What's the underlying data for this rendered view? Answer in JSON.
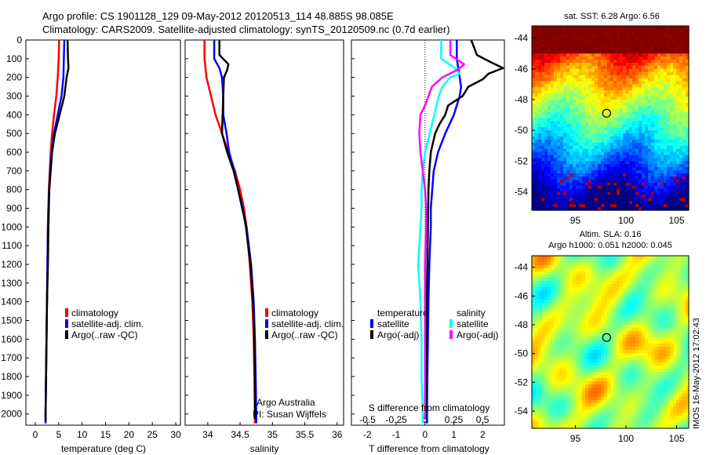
{
  "header": {
    "line1": "Argo profile: CS 1901128_129 09-May-2012 20120513_114 48.885S 98.085E",
    "line2": "Climatology: CARS2009. Satellite-adjusted climatology: synTS_20120509.nc (0.7d earlier)"
  },
  "credit": {
    "line1": "Argo Australia",
    "line2": "PI: Susan Wijffels"
  },
  "stamp": "IMOS 16-May-2012 17:02:43",
  "colors": {
    "climatology": "#ff0000",
    "satellite": "#0000ff",
    "argo": "#000000",
    "satellite_s": "#00ffff",
    "argo_s": "#ff00ff"
  },
  "chart_data": [
    {
      "type": "line",
      "xlabel": "temperature (deg C)",
      "ylabel": "",
      "xlim": [
        -2,
        31
      ],
      "ylim": [
        2060,
        0
      ],
      "xticks": [
        "0",
        "5",
        "10",
        "15",
        "20",
        "25",
        "30"
      ],
      "yticks": [
        "0",
        "100",
        "200",
        "300",
        "400",
        "500",
        "600",
        "700",
        "800",
        "900",
        "1000",
        "1100",
        "1200",
        "1300",
        "1400",
        "1500",
        "1600",
        "1700",
        "1800",
        "1900",
        "2000"
      ],
      "legend": [
        "climatology",
        "satellite-adj. clim.",
        "Argo(..raw -QC)"
      ],
      "series": [
        {
          "name": "climatology",
          "color": "#ff0000",
          "points": [
            [
              5.1,
              0
            ],
            [
              5.0,
              100
            ],
            [
              4.8,
              200
            ],
            [
              4.5,
              300
            ],
            [
              4.0,
              400
            ],
            [
              3.6,
              500
            ],
            [
              3.3,
              600
            ],
            [
              3.1,
              700
            ],
            [
              2.9,
              800
            ],
            [
              2.8,
              900
            ],
            [
              2.7,
              1000
            ],
            [
              2.6,
              1200
            ],
            [
              2.5,
              1400
            ],
            [
              2.4,
              1600
            ],
            [
              2.3,
              1800
            ],
            [
              2.2,
              2000
            ],
            [
              2.2,
              2050
            ]
          ]
        },
        {
          "name": "satellite-adj. clim.",
          "color": "#0000ff",
          "points": [
            [
              6.2,
              0
            ],
            [
              6.1,
              100
            ],
            [
              6.0,
              200
            ],
            [
              5.6,
              300
            ],
            [
              4.8,
              400
            ],
            [
              4.0,
              500
            ],
            [
              3.5,
              600
            ],
            [
              3.2,
              700
            ],
            [
              3.0,
              800
            ],
            [
              2.8,
              900
            ],
            [
              2.7,
              1000
            ],
            [
              2.6,
              1200
            ],
            [
              2.5,
              1400
            ],
            [
              2.4,
              1600
            ],
            [
              2.3,
              1800
            ],
            [
              2.2,
              2000
            ],
            [
              2.2,
              2050
            ]
          ]
        },
        {
          "name": "Argo(..raw -QC)",
          "color": "#000000",
          "points": [
            [
              6.9,
              0
            ],
            [
              7.0,
              100
            ],
            [
              7.1,
              150
            ],
            [
              6.7,
              200
            ],
            [
              6.2,
              300
            ],
            [
              5.2,
              400
            ],
            [
              4.2,
              500
            ],
            [
              3.6,
              600
            ],
            [
              3.3,
              700
            ],
            [
              3.0,
              800
            ],
            [
              2.9,
              900
            ],
            [
              2.8,
              1000
            ],
            [
              2.7,
              1200
            ],
            [
              2.5,
              1400
            ],
            [
              2.4,
              1600
            ],
            [
              2.3,
              1800
            ],
            [
              2.2,
              2000
            ],
            [
              2.2,
              2040
            ]
          ]
        }
      ]
    },
    {
      "type": "line",
      "xlabel": "salinity",
      "ylabel": "",
      "xlim": [
        33.65,
        36.1
      ],
      "ylim": [
        2060,
        0
      ],
      "xticks": [
        "34",
        "34.5",
        "35",
        "35.5",
        "36"
      ],
      "legend": [
        "climatology",
        "satellite-adj. clim.",
        "Argo(..raw -QC)"
      ],
      "series": [
        {
          "name": "climatology",
          "color": "#ff0000",
          "points": [
            [
              33.95,
              0
            ],
            [
              33.95,
              100
            ],
            [
              33.98,
              200
            ],
            [
              34.05,
              300
            ],
            [
              34.12,
              400
            ],
            [
              34.22,
              500
            ],
            [
              34.32,
              600
            ],
            [
              34.42,
              700
            ],
            [
              34.5,
              800
            ],
            [
              34.56,
              900
            ],
            [
              34.6,
              1000
            ],
            [
              34.65,
              1200
            ],
            [
              34.69,
              1400
            ],
            [
              34.71,
              1600
            ],
            [
              34.72,
              1800
            ],
            [
              34.73,
              2000
            ],
            [
              34.73,
              2050
            ]
          ]
        },
        {
          "name": "satellite-adj. clim.",
          "color": "#0000ff",
          "points": [
            [
              34.1,
              0
            ],
            [
              34.1,
              100
            ],
            [
              34.18,
              150
            ],
            [
              34.22,
              200
            ],
            [
              34.24,
              300
            ],
            [
              34.24,
              400
            ],
            [
              34.29,
              500
            ],
            [
              34.33,
              600
            ],
            [
              34.41,
              700
            ],
            [
              34.47,
              800
            ],
            [
              34.53,
              900
            ],
            [
              34.6,
              1000
            ],
            [
              34.67,
              1200
            ],
            [
              34.71,
              1400
            ],
            [
              34.73,
              1600
            ],
            [
              34.74,
              1800
            ],
            [
              34.75,
              2000
            ],
            [
              34.75,
              2050
            ]
          ]
        },
        {
          "name": "Argo(..raw -QC)",
          "color": "#000000",
          "points": [
            [
              34.18,
              0
            ],
            [
              34.18,
              80
            ],
            [
              34.32,
              130
            ],
            [
              34.3,
              160
            ],
            [
              34.25,
              200
            ],
            [
              34.24,
              300
            ],
            [
              34.23,
              400
            ],
            [
              34.22,
              500
            ],
            [
              34.3,
              600
            ],
            [
              34.4,
              700
            ],
            [
              34.47,
              800
            ],
            [
              34.54,
              900
            ],
            [
              34.59,
              1000
            ],
            [
              34.66,
              1200
            ],
            [
              34.7,
              1400
            ],
            [
              34.72,
              1600
            ],
            [
              34.73,
              1800
            ],
            [
              34.73,
              2000
            ],
            [
              34.73,
              2030
            ]
          ]
        }
      ]
    },
    {
      "type": "line",
      "xlabel": "T difference from climatology",
      "title_bottom": "S difference from climatology",
      "xlim_T": [
        -2.55,
        2.75
      ],
      "xticks_T": [
        "-2",
        "-1",
        "0",
        "1",
        "2"
      ],
      "xlim_S": [
        -0.64,
        0.69
      ],
      "xticks_S": [
        "-0.5",
        "-0.25",
        "0",
        "0.25",
        "0.5"
      ],
      "ylim": [
        2060,
        0
      ],
      "legend": [
        "temperature",
        "satellite",
        "Argo(-adj)",
        "salinity",
        "satellite",
        "Argo(-adj)"
      ],
      "series": [
        {
          "name": "satellite",
          "axis": "T",
          "color": "#0000ff",
          "points": [
            [
              1.1,
              0
            ],
            [
              1.1,
              100
            ],
            [
              1.2,
              200
            ],
            [
              1.25,
              250
            ],
            [
              1.2,
              300
            ],
            [
              1.0,
              400
            ],
            [
              0.7,
              500
            ],
            [
              0.45,
              600
            ],
            [
              0.3,
              700
            ],
            [
              0.25,
              800
            ],
            [
              0.2,
              900
            ],
            [
              0.2,
              1000
            ],
            [
              0.15,
              1200
            ],
            [
              0.12,
              1400
            ],
            [
              0.1,
              1600
            ],
            [
              0.08,
              1800
            ],
            [
              0.07,
              2000
            ],
            [
              0.07,
              2050
            ]
          ]
        },
        {
          "name": "Argo(-adj)",
          "axis": "T",
          "color": "#000000",
          "points": [
            [
              1.6,
              0
            ],
            [
              1.8,
              80
            ],
            [
              2.3,
              120
            ],
            [
              2.7,
              150
            ],
            [
              2.2,
              180
            ],
            [
              2.0,
              210
            ],
            [
              1.5,
              250
            ],
            [
              1.3,
              300
            ],
            [
              0.8,
              350
            ],
            [
              0.7,
              400
            ],
            [
              0.5,
              450
            ],
            [
              0.35,
              500
            ],
            [
              0.2,
              600
            ],
            [
              0.15,
              700
            ],
            [
              0.12,
              800
            ],
            [
              0.1,
              1000
            ],
            [
              0.08,
              1200
            ],
            [
              0.06,
              1400
            ],
            [
              0.05,
              1600
            ],
            [
              0.04,
              1800
            ],
            [
              0.03,
              2000
            ],
            [
              0.03,
              2030
            ]
          ]
        },
        {
          "name": "satellite",
          "axis": "S",
          "color": "#00ffff",
          "points": [
            [
              0.14,
              0
            ],
            [
              0.14,
              100
            ],
            [
              0.26,
              150
            ],
            [
              0.3,
              180
            ],
            [
              0.22,
              200
            ],
            [
              0.15,
              250
            ],
            [
              0.12,
              300
            ],
            [
              0.08,
              400
            ],
            [
              0.04,
              500
            ],
            [
              0.0,
              600
            ],
            [
              -0.02,
              700
            ],
            [
              -0.03,
              800
            ],
            [
              -0.03,
              900
            ],
            [
              -0.04,
              1000
            ],
            [
              -0.05,
              1100
            ],
            [
              -0.06,
              1200
            ],
            [
              -0.05,
              1300
            ],
            [
              -0.04,
              1400
            ],
            [
              -0.03,
              1600
            ],
            [
              -0.03,
              1800
            ],
            [
              -0.02,
              2000
            ],
            [
              -0.02,
              2050
            ]
          ]
        },
        {
          "name": "Argo(-adj)",
          "axis": "S",
          "color": "#ff00ff",
          "points": [
            [
              0.22,
              0
            ],
            [
              0.22,
              80
            ],
            [
              0.34,
              130
            ],
            [
              0.28,
              160
            ],
            [
              0.15,
              200
            ],
            [
              0.06,
              250
            ],
            [
              0.03,
              300
            ],
            [
              0.0,
              350
            ],
            [
              -0.04,
              400
            ],
            [
              -0.05,
              500
            ],
            [
              -0.04,
              600
            ],
            [
              -0.02,
              700
            ],
            [
              0.0,
              800
            ],
            [
              0.01,
              900
            ],
            [
              0.01,
              1000
            ],
            [
              0.0,
              1200
            ],
            [
              0.0,
              1400
            ],
            [
              0.0,
              1600
            ],
            [
              0.0,
              1800
            ],
            [
              0.0,
              2000
            ],
            [
              0.0,
              2030
            ]
          ]
        }
      ]
    },
    {
      "type": "heatmap",
      "title": "sat. SST: 6.28 Argo: 6.56",
      "xlim": [
        90.7,
        106.2
      ],
      "ylim": [
        -55.2,
        -43.2
      ],
      "xticks": [
        "95",
        "100",
        "105"
      ],
      "yticks": [
        "-44",
        "-46",
        "-48",
        "-50",
        "-52",
        "-54"
      ],
      "float_position": {
        "lon": 98.085,
        "lat": -48.885
      }
    },
    {
      "type": "heatmap",
      "title": "Altim. SLA: 0.16",
      "subtitle": "Argo h1000: 0.051 h2000: 0.045",
      "xlim": [
        90.7,
        106.2
      ],
      "ylim": [
        -55.2,
        -43.2
      ],
      "xticks": [
        "95",
        "100",
        "105"
      ],
      "yticks": [
        "-44",
        "-46",
        "-48",
        "-50",
        "-52",
        "-54"
      ],
      "float_position": {
        "lon": 98.085,
        "lat": -48.885
      }
    }
  ]
}
